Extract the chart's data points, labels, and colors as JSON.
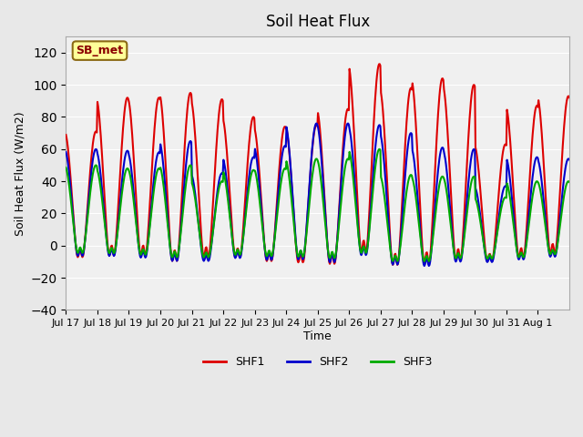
{
  "title": "Soil Heat Flux",
  "ylabel": "Soil Heat Flux (W/m2)",
  "xlabel": "Time",
  "ylim": [
    -40,
    130
  ],
  "yticks": [
    -40,
    -20,
    0,
    20,
    40,
    60,
    80,
    100,
    120
  ],
  "bg_color": "#e8e8e8",
  "plot_bg_color": "#f0f0f0",
  "line_colors": {
    "SHF1": "#dd0000",
    "SHF2": "#0000cc",
    "SHF3": "#00aa00"
  },
  "legend_label": "SB_met",
  "legend_label_color": "#8B0000",
  "legend_box_color": "#ffff99",
  "x_tick_labels": [
    "Jul 17",
    "Jul 18",
    "Jul 19",
    "Jul 20",
    "Jul 21",
    "Jul 22",
    "Jul 23",
    "Jul 24",
    "Jul 25",
    "Jul 26",
    "Jul 27",
    "Jul 28",
    "Jul 29",
    "Jul 30",
    "Jul 31",
    "Aug 1"
  ],
  "daily_peaks_shf1": [
    71,
    92,
    92,
    95,
    91,
    80,
    74,
    75,
    85,
    113,
    98,
    104,
    100,
    63,
    87,
    93
  ],
  "daily_peaks_shf2": [
    60,
    59,
    58,
    65,
    45,
    55,
    62,
    76,
    76,
    75,
    70,
    61,
    60,
    37,
    55,
    54
  ],
  "daily_peaks_shf3": [
    50,
    48,
    48,
    50,
    40,
    47,
    48,
    54,
    54,
    60,
    44,
    43,
    43,
    30,
    40,
    40
  ],
  "daily_min_shf1": [
    -15,
    -16,
    -16,
    -20,
    -17,
    -16,
    -18,
    -19,
    -21,
    -16,
    -23,
    -23,
    -20,
    -17,
    -17,
    -15
  ],
  "daily_min_shf2": [
    -13,
    -13,
    -14,
    -17,
    -15,
    -14,
    -16,
    -17,
    -19,
    -14,
    -20,
    -20,
    -17,
    -15,
    -15,
    -13
  ],
  "daily_min_shf3": [
    -10,
    -10,
    -11,
    -13,
    -12,
    -11,
    -12,
    -13,
    -14,
    -11,
    -15,
    -15,
    -13,
    -12,
    -12,
    -10
  ],
  "points_per_day": 48,
  "linewidth": 1.5
}
